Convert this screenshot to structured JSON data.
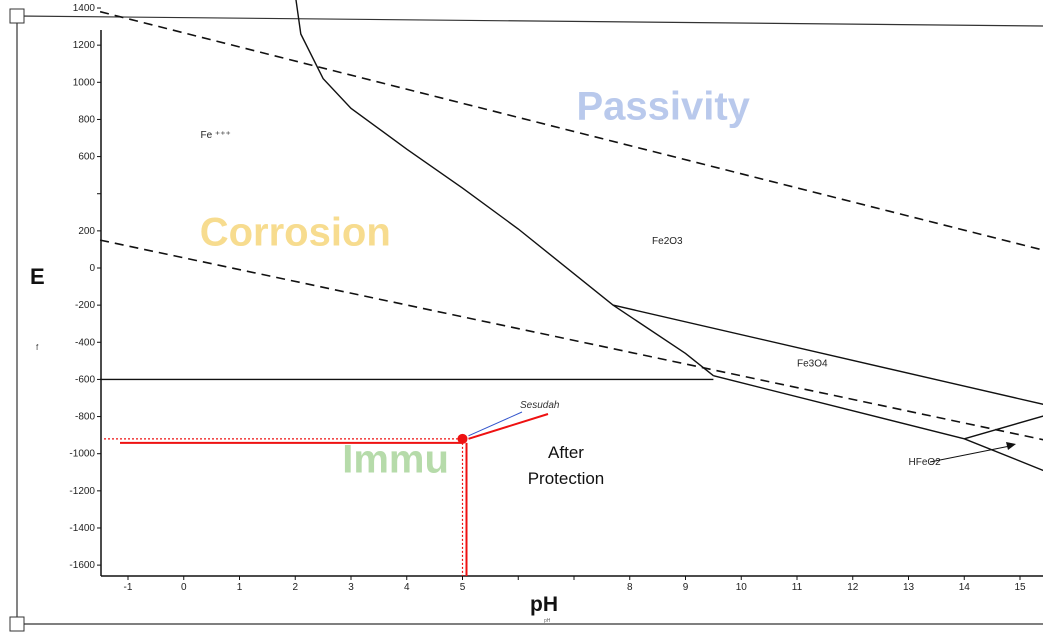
{
  "chart_data": {
    "type": "line",
    "xlabel": "pH",
    "ylabel": "E",
    "xlim": [
      -1.5,
      15.5
    ],
    "ylim": [
      -1650,
      1450
    ],
    "x_ticks": [
      -1,
      0,
      1,
      2,
      3,
      4,
      5,
      6,
      7,
      8,
      9,
      10,
      11,
      12,
      13,
      14,
      15
    ],
    "x_tick_labels": [
      "-1",
      "0",
      "1",
      "2",
      "3",
      "4",
      "5",
      "",
      "",
      "8",
      "9",
      "10",
      "11",
      "12",
      "13",
      "14",
      "15"
    ],
    "y_ticks": [
      1400,
      1200,
      1000,
      800,
      600,
      400,
      200,
      0,
      -200,
      -400,
      -600,
      -800,
      -1000,
      -1200,
      -1400,
      -1600
    ],
    "y_tick_labels": [
      "1400",
      "1200",
      "1000",
      "800",
      "600",
      "",
      "200",
      "0",
      "-200",
      "-400",
      "-600",
      "-800",
      "-1000",
      "-1200",
      "-1400",
      "-1600"
    ],
    "series": [
      {
        "style": "solid",
        "points": [
          [
            2,
            1470
          ],
          [
            2.1,
            1260
          ],
          [
            2.5,
            1020
          ],
          [
            3,
            860
          ],
          [
            4,
            640
          ],
          [
            5,
            430
          ],
          [
            6,
            210
          ],
          [
            7.7,
            -200
          ],
          [
            9,
            -460
          ],
          [
            9.5,
            -580
          ]
        ]
      },
      {
        "style": "solid",
        "points": [
          [
            -1.5,
            -600
          ],
          [
            9.5,
            -600
          ]
        ]
      },
      {
        "style": "solid",
        "points": [
          [
            7.7,
            -200
          ],
          [
            15.5,
            -740
          ]
        ]
      },
      {
        "style": "solid",
        "points": [
          [
            9.5,
            -580
          ],
          [
            14,
            -920
          ],
          [
            15.5,
            -1100
          ]
        ]
      },
      {
        "style": "solid",
        "points": [
          [
            14,
            -920
          ],
          [
            15.5,
            -790
          ]
        ]
      },
      {
        "style": "dashed",
        "points": [
          [
            -1.5,
            1380
          ],
          [
            15.5,
            90
          ]
        ]
      },
      {
        "style": "dashed",
        "points": [
          [
            -1.5,
            150
          ],
          [
            15.5,
            -930
          ]
        ]
      }
    ],
    "regions": [
      {
        "label": "Passivity",
        "x": 8.6,
        "y": 800,
        "color": "#b9c9ec"
      },
      {
        "label": "Corrosion",
        "x": 2,
        "y": 120,
        "color": "#f7dc8f"
      },
      {
        "label": "Immu",
        "x": 3.8,
        "y": -1100,
        "color": "#b6dbaa"
      }
    ],
    "species_labels": [
      {
        "label": "Fe ⁺⁺⁺",
        "x": 0.3,
        "y": 700
      },
      {
        "label": "Fe2O3",
        "x": 8.4,
        "y": 130
      },
      {
        "label": "Fe3O4",
        "x": 11,
        "y": -530
      },
      {
        "label": "HFeO2",
        "x": 13,
        "y": -1060
      }
    ],
    "annotations": [
      {
        "label": "Sesudah",
        "x": 6,
        "y": -770
      },
      {
        "label": "After",
        "x": 6.5,
        "y": -990
      },
      {
        "label": "Protection",
        "x": 6.5,
        "y": -1120
      }
    ],
    "highlight_point": {
      "x": 5,
      "y": -920,
      "color": "#ee1111"
    },
    "marker": "f",
    "sub_marker": "pH"
  }
}
